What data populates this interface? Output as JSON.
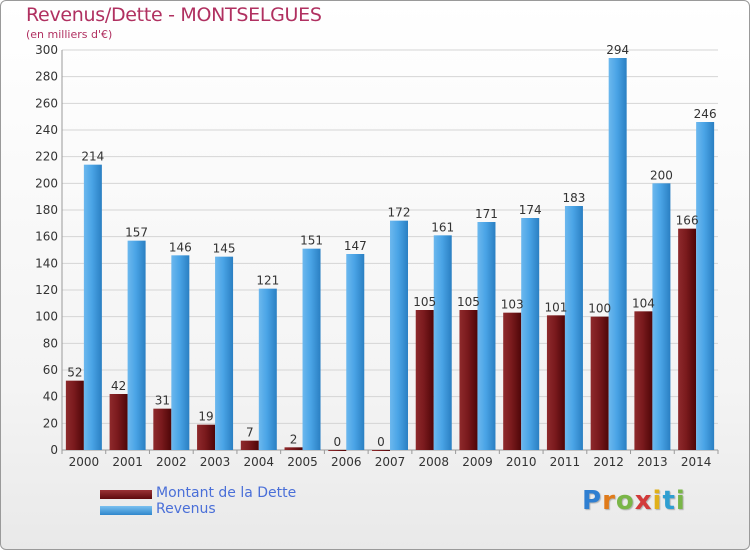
{
  "colors": {
    "debt": "#6e0f12",
    "revenue": "#3d9be0",
    "title": "#b03060",
    "legend_text": "#4a6fd8",
    "grid": "#d5d5d5"
  },
  "legend": [
    {
      "label": "Montant de la Dette",
      "color": "#6e0f12"
    },
    {
      "label": "Revenus",
      "color": "#3d9be0"
    }
  ],
  "logo": {
    "text": "Proxiti",
    "letter_colors": [
      "#2f7fd1",
      "#e07b1a",
      "#7ab648",
      "#d23a3a",
      "#e0b01a",
      "#2f9fd1",
      "#7ab648"
    ]
  },
  "chart_data": {
    "type": "bar",
    "title": "Revenus/Dette - MONTSELGUES",
    "subtitle": "(en milliers d'€)",
    "xlabel": "",
    "ylabel": "",
    "ylim": [
      0,
      300
    ],
    "yticks": [
      0,
      20,
      40,
      60,
      80,
      100,
      120,
      140,
      160,
      180,
      200,
      220,
      240,
      260,
      280,
      300
    ],
    "grid": true,
    "legend_position": "bottom-left",
    "categories": [
      "2000",
      "2001",
      "2002",
      "2003",
      "2004",
      "2005",
      "2006",
      "2007",
      "2008",
      "2009",
      "2010",
      "2011",
      "2012",
      "2013",
      "2014"
    ],
    "series": [
      {
        "name": "Montant de la Dette",
        "values": [
          52,
          42,
          31,
          19,
          7,
          2,
          0,
          0,
          105,
          105,
          103,
          101,
          100,
          104,
          166
        ]
      },
      {
        "name": "Revenus",
        "values": [
          214,
          157,
          146,
          145,
          121,
          151,
          147,
          172,
          161,
          171,
          174,
          183,
          294,
          200,
          246
        ]
      }
    ]
  }
}
